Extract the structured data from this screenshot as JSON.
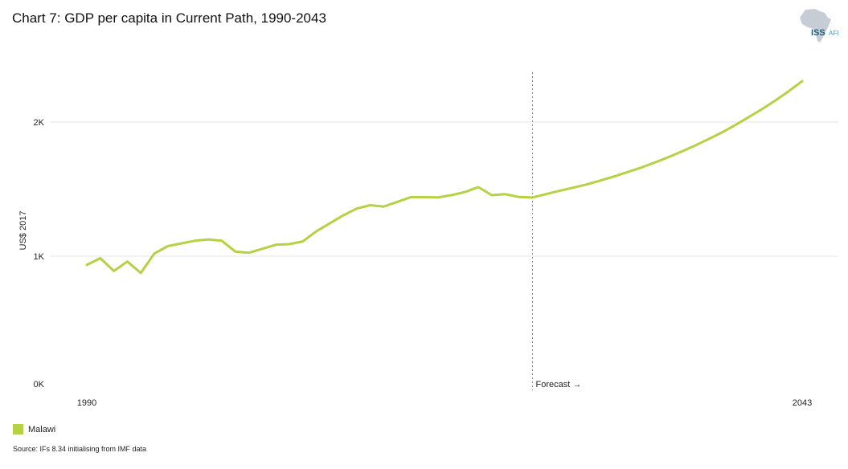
{
  "title": "Chart 7: GDP per capita in Current Path, 1990-2043",
  "logo": {
    "text_main": "ISS",
    "text_sub": "AFI"
  },
  "source": "Source: IFs 8.34 initialising from IMF data",
  "colors": {
    "series": "#b5d144",
    "grid": "#e6e6e6",
    "forecast_line": "#888888"
  },
  "chart_data": {
    "type": "line",
    "ylabel": "US$ 2017",
    "ylim": [
      0,
      2400
    ],
    "yticks": [
      {
        "value": 0,
        "label": "0K"
      },
      {
        "value": 1000,
        "label": "1K"
      },
      {
        "value": 2000,
        "label": "2K"
      }
    ],
    "xlim": [
      1990,
      2043
    ],
    "xticks": [
      {
        "value": 1990,
        "label": "1990"
      },
      {
        "value": 2043,
        "label": "2043"
      }
    ],
    "forecast": {
      "x": 2023,
      "label": "Forecast →"
    },
    "grid": true,
    "legend_position": "bottom-left",
    "series": [
      {
        "name": "Malawi",
        "x": [
          1990,
          1991,
          1992,
          1993,
          1994,
          1995,
          1996,
          1997,
          1998,
          1999,
          2000,
          2001,
          2002,
          2003,
          2004,
          2005,
          2006,
          2007,
          2008,
          2009,
          2010,
          2011,
          2012,
          2013,
          2014,
          2015,
          2016,
          2017,
          2018,
          2019,
          2020,
          2021,
          2022,
          2023,
          2024,
          2025,
          2026,
          2027,
          2028,
          2029,
          2030,
          2031,
          2032,
          2033,
          2034,
          2035,
          2036,
          2037,
          2038,
          2039,
          2040,
          2041,
          2042,
          2043
        ],
        "values": [
          935,
          985,
          890,
          960,
          875,
          1020,
          1075,
          1095,
          1115,
          1125,
          1115,
          1035,
          1025,
          1055,
          1085,
          1090,
          1110,
          1185,
          1245,
          1305,
          1355,
          1380,
          1370,
          1405,
          1440,
          1440,
          1438,
          1455,
          1478,
          1515,
          1455,
          1462,
          1442,
          1438,
          1462,
          1487,
          1510,
          1534,
          1562,
          1592,
          1625,
          1658,
          1695,
          1735,
          1777,
          1822,
          1870,
          1920,
          1975,
          2035,
          2095,
          2160,
          2230,
          2305
        ]
      }
    ]
  }
}
